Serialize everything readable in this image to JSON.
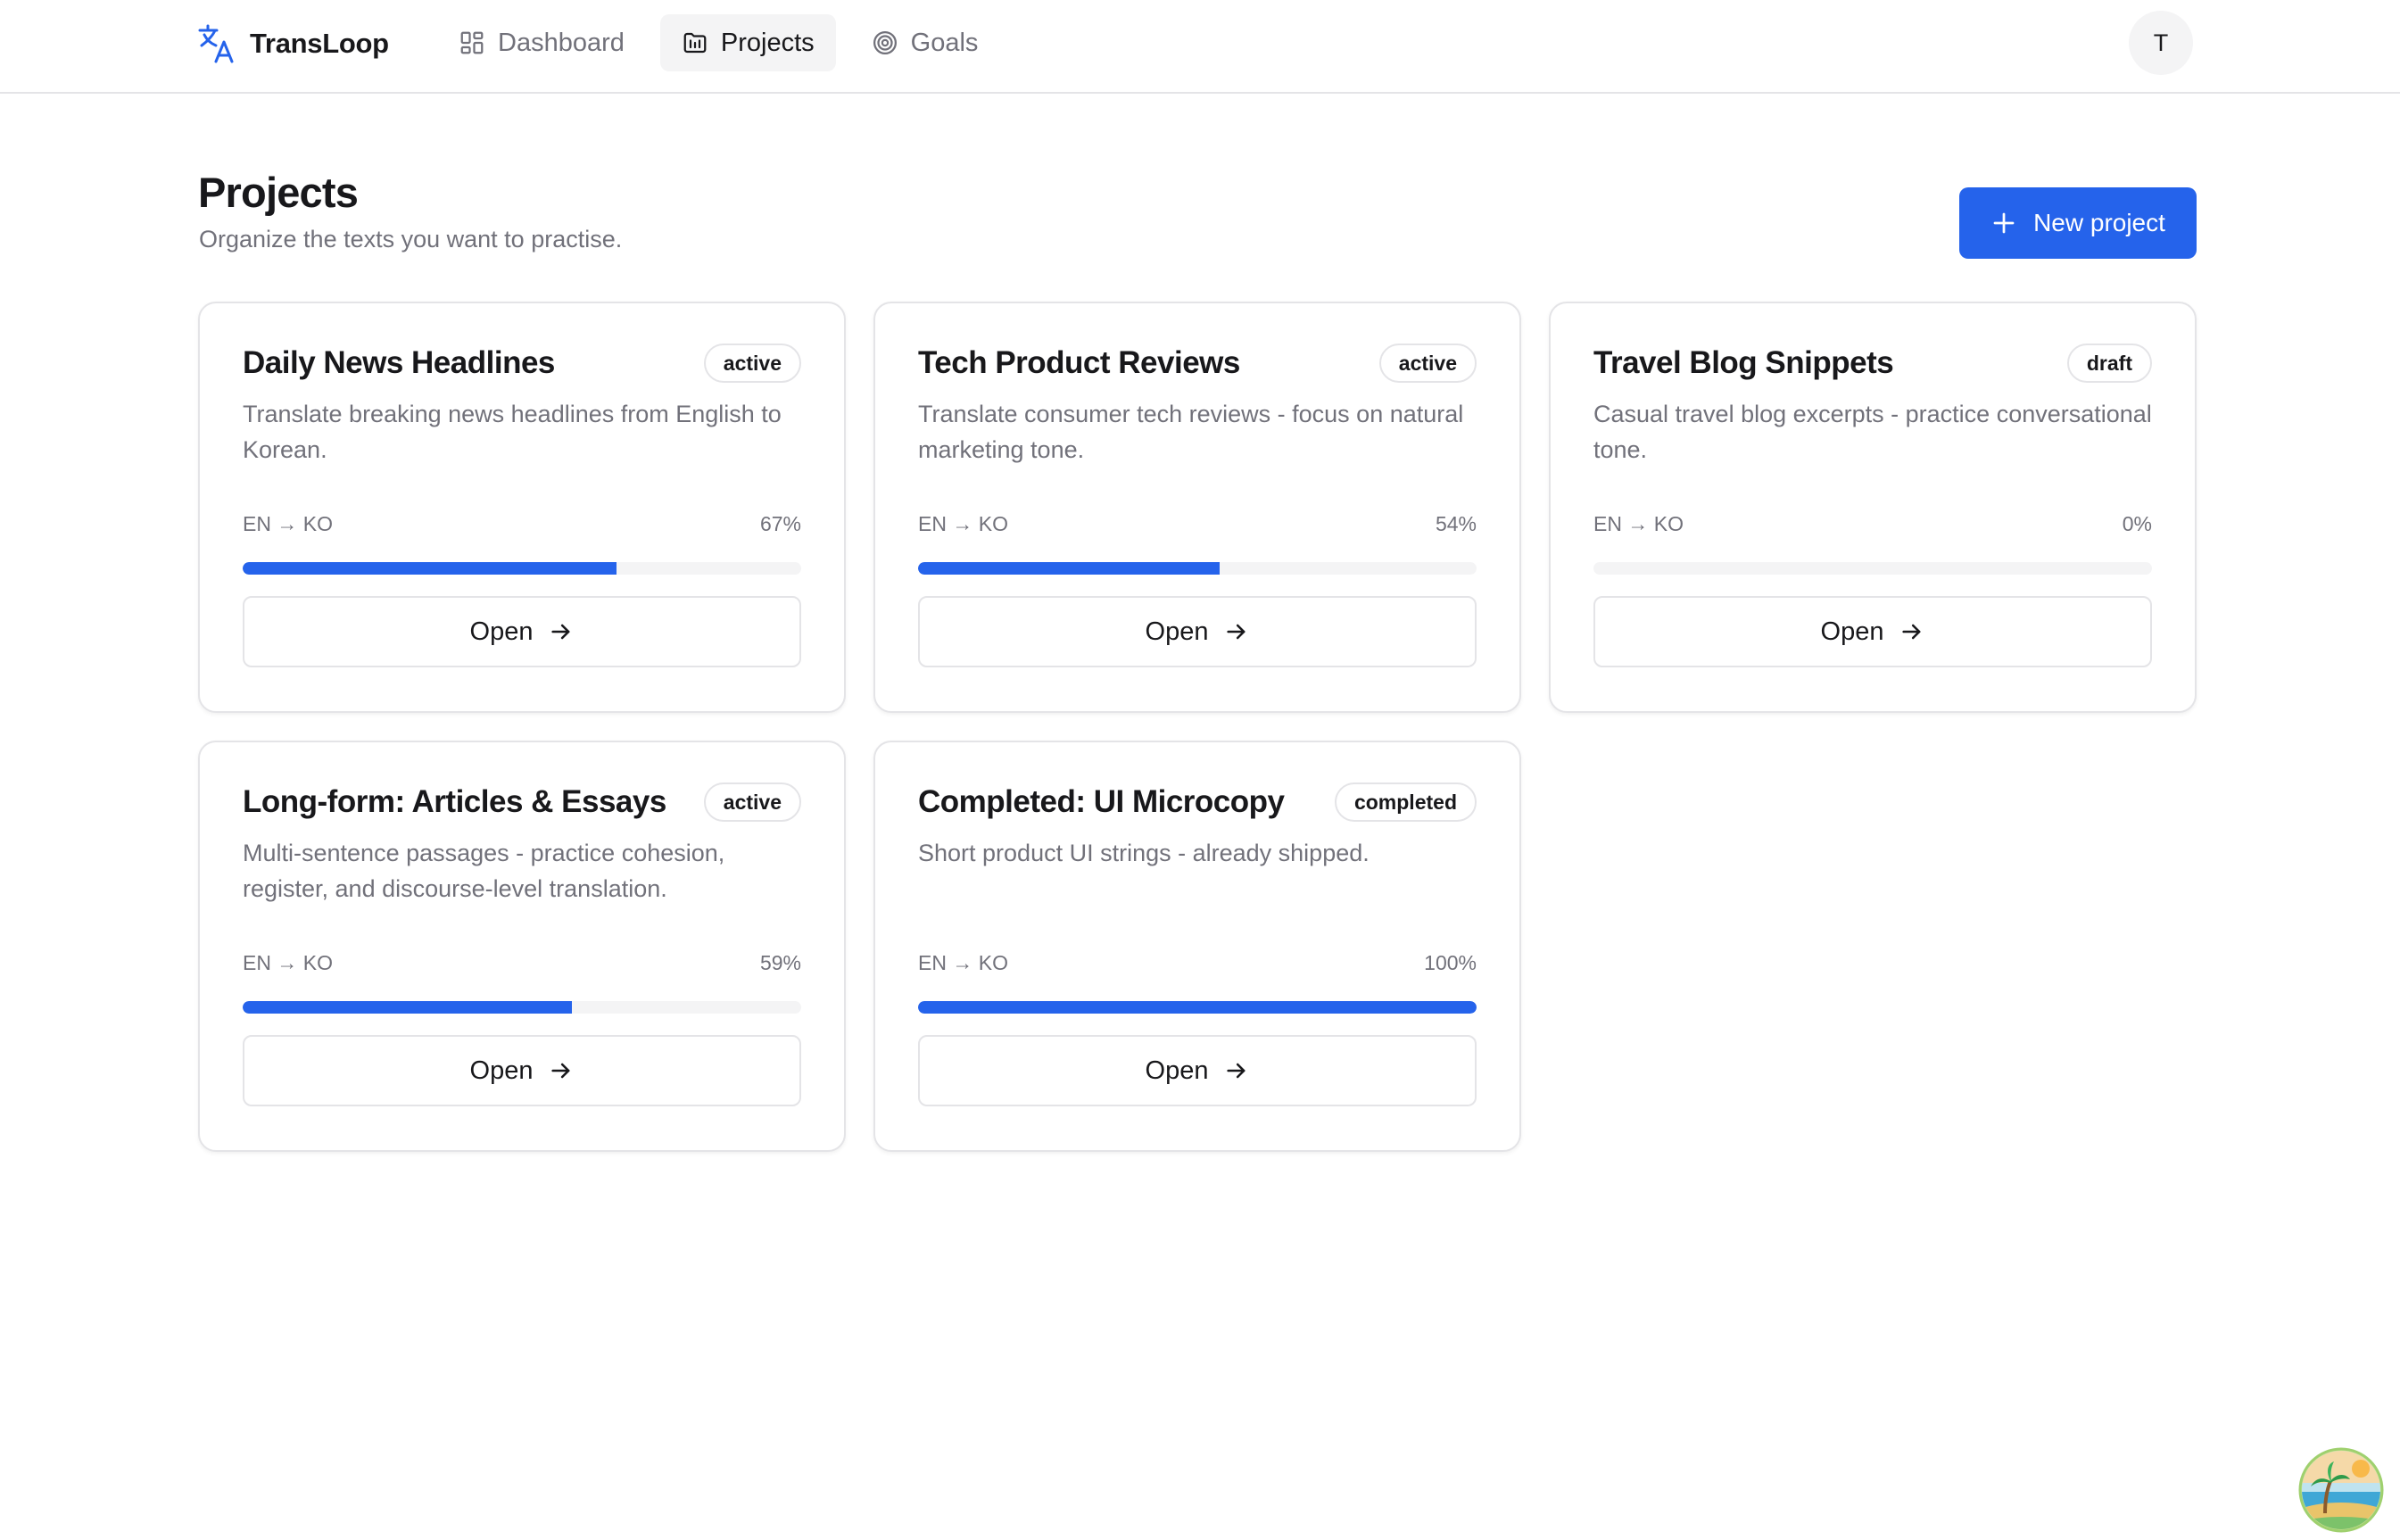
{
  "app": {
    "name": "TransLoop"
  },
  "nav": {
    "items": [
      {
        "label": "Dashboard",
        "icon": "dashboard-icon",
        "active": false
      },
      {
        "label": "Projects",
        "icon": "folder-icon",
        "active": true
      },
      {
        "label": "Goals",
        "icon": "target-icon",
        "active": false
      }
    ]
  },
  "user": {
    "initial": "T"
  },
  "page": {
    "title": "Projects",
    "subtitle": "Organize the texts you want to practise.",
    "new_button_label": "New project"
  },
  "colors": {
    "accent": "#2563eb",
    "track": "#f4f4f5",
    "border": "#e4e4e7",
    "muted": "#71717a"
  },
  "projects": [
    {
      "title": "Daily News Headlines",
      "status": "active",
      "description": "Translate breaking news headlines from English to Korean.",
      "languages": "EN → KO",
      "progress_percent": 67,
      "progress_label": "67%",
      "open_label": "Open"
    },
    {
      "title": "Tech Product Reviews",
      "status": "active",
      "description": "Translate consumer tech reviews - focus on natural marketing tone.",
      "languages": "EN → KO",
      "progress_percent": 54,
      "progress_label": "54%",
      "open_label": "Open"
    },
    {
      "title": "Travel Blog Snippets",
      "status": "draft",
      "description": "Casual travel blog excerpts - practice conversational tone.",
      "languages": "EN → KO",
      "progress_percent": 0,
      "progress_label": "0%",
      "open_label": "Open"
    },
    {
      "title": "Long-form: Articles & Essays",
      "status": "active",
      "description": "Multi-sentence passages - practice cohesion, register, and discourse-level translation.",
      "languages": "EN → KO",
      "progress_percent": 59,
      "progress_label": "59%",
      "open_label": "Open"
    },
    {
      "title": "Completed: UI Microcopy",
      "status": "completed",
      "description": "Short product UI strings - already shipped.",
      "languages": "EN → KO",
      "progress_percent": 100,
      "progress_label": "100%",
      "open_label": "Open"
    }
  ]
}
